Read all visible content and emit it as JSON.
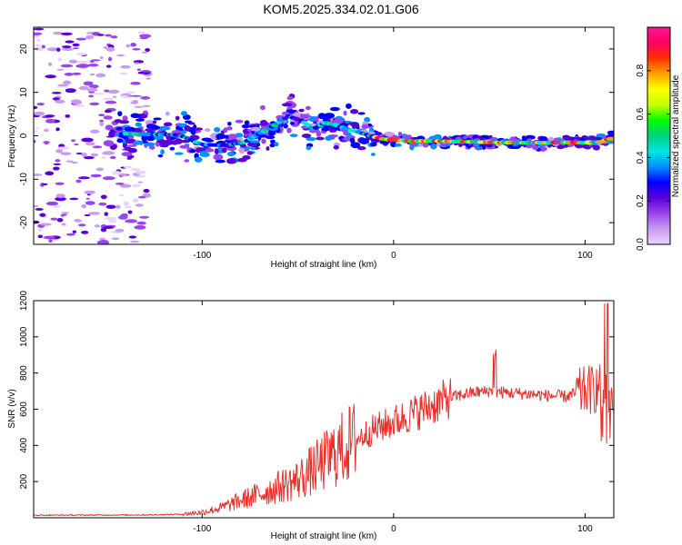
{
  "title": "KOM5.2025.334.02.01.G06",
  "chart_data": [
    {
      "id": "spectrogram",
      "type": "heatmap",
      "xlabel": "Height of straight line (km)",
      "ylabel": "Frequency (Hz)",
      "xlim": [
        -188,
        115
      ],
      "ylim": [
        -25,
        25
      ],
      "xticks": [
        -100,
        0,
        100
      ],
      "yticks": [
        -20,
        -10,
        0,
        10,
        20
      ],
      "colorbar": {
        "label": "Normalized spectral amplitude",
        "range": [
          0,
          1
        ],
        "ticks": [
          0.0,
          0.2,
          0.4,
          0.6,
          0.8
        ],
        "colors": [
          "#e8d4ff",
          "#c89bf2",
          "#9a44ee",
          "#5a00d8",
          "#0000ff",
          "#0090ff",
          "#00e8e0",
          "#00d080",
          "#00ff00",
          "#c8ff00",
          "#ffff00",
          "#ffa000",
          "#ff3000",
          "#ff0060",
          "#ff1493"
        ]
      },
      "ridge": {
        "x": [
          -140,
          -125,
          -112,
          -100,
          -88,
          -78,
          -70,
          -62,
          -55,
          -48,
          -42,
          -36,
          -30,
          -24,
          -18,
          -12,
          -6,
          0,
          10,
          20,
          30,
          40,
          50,
          60,
          70,
          80,
          90,
          100,
          108,
          115
        ],
        "y": [
          0.5,
          0.3,
          0.2,
          -2.0,
          -2.2,
          -1.5,
          0.5,
          2.5,
          4.5,
          3.5,
          1.5,
          3.0,
          2.5,
          1.5,
          0.8,
          0.0,
          -0.7,
          -1.0,
          -1.2,
          -1.2,
          -1.3,
          -1.4,
          -1.5,
          -1.6,
          -1.6,
          -1.6,
          -1.5,
          -1.6,
          -1.4,
          -0.5
        ]
      }
    },
    {
      "id": "snr",
      "type": "line",
      "xlabel": "Height of straight line (km)",
      "ylabel": "SNR (v/v)",
      "xlim": [
        -188,
        115
      ],
      "ylim": [
        0,
        1200
      ],
      "xticks": [
        -100,
        0,
        100
      ],
      "yticks": [
        200,
        400,
        600,
        800,
        1000,
        1200
      ],
      "color": "#e8302a",
      "envelope": {
        "x": [
          -188,
          -150,
          -125,
          -110,
          -100,
          -90,
          -80,
          -70,
          -60,
          -50,
          -40,
          -30,
          -20,
          -10,
          0,
          10,
          20,
          30,
          40,
          50,
          60,
          70,
          80,
          90,
          100,
          108,
          112,
          115
        ],
        "y": [
          14,
          15,
          16,
          20,
          30,
          55,
          95,
          130,
          170,
          210,
          280,
          360,
          430,
          490,
          530,
          575,
          620,
          665,
          690,
          700,
          690,
          685,
          675,
          670,
          700,
          720,
          650,
          650
        ]
      }
    }
  ]
}
